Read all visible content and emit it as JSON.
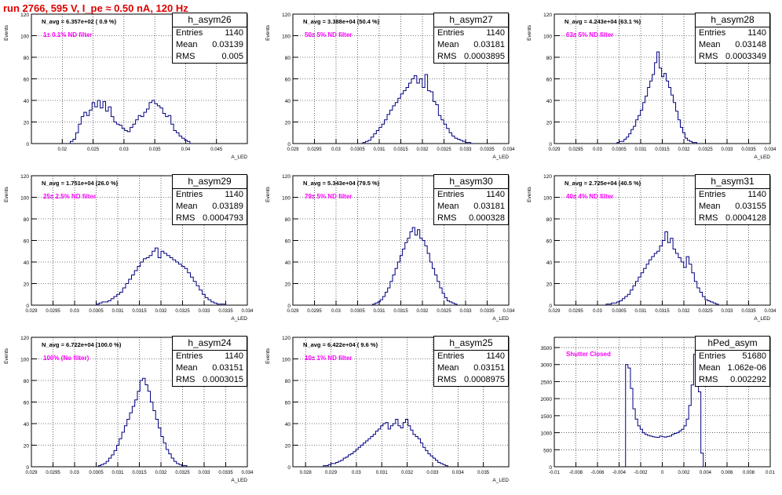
{
  "canvas": {
    "title": "run 2766,   595 V, I_pe ≈ 0.50 nA, 120 Hz",
    "title_color": "#dd0000"
  },
  "chart_data": [
    {
      "type": "bar",
      "name": "h_asym26",
      "ylabel": "Events",
      "xlabel": "A_LED",
      "xlim": [
        0.015,
        0.05
      ],
      "ylim": [
        0,
        120
      ],
      "xticks": [
        0.02,
        0.025,
        0.03,
        0.035,
        0.04,
        0.045
      ],
      "xtick_labels": [
        "0.02",
        "0.025",
        "0.03",
        "0.035",
        "0.04",
        "0.045"
      ],
      "yticks": [
        0,
        20,
        40,
        60,
        80,
        100,
        120
      ],
      "grid": true,
      "line_color": "#000080",
      "n_avg": "N_avg = 6.357e+02 ( 0.9 %)",
      "filter_label": "1± 0.1% ND filter",
      "filter_color": "#ff00ff",
      "stats": [
        [
          "Entries",
          "1140"
        ],
        [
          "Mean",
          "0.03139"
        ],
        [
          "RMS",
          "0.005"
        ]
      ],
      "bin_edges": [
        0.0213,
        0.0272,
        0.0294,
        0.0318,
        0.0336,
        0.036,
        0.0386,
        0.0407
      ],
      "bin_values": [
        2,
        4,
        10,
        18,
        25,
        29,
        26,
        31,
        38,
        34,
        40,
        33,
        39,
        30,
        34,
        25,
        20,
        18,
        17,
        14,
        12,
        11,
        15,
        18,
        22,
        26,
        25,
        29,
        32,
        38,
        40,
        37,
        35,
        33,
        28,
        25,
        26,
        18,
        12,
        10,
        7,
        5,
        3,
        2
      ]
    },
    {
      "type": "bar",
      "name": "h_asym27",
      "ylabel": "Events",
      "xlabel": "A_LED",
      "xlim": [
        0.029,
        0.034
      ],
      "ylim": [
        0,
        120
      ],
      "xticks": [
        0.029,
        0.0295,
        0.03,
        0.0305,
        0.031,
        0.0315,
        0.032,
        0.0325,
        0.033,
        0.0335,
        0.034
      ],
      "xtick_labels": [
        "0.029",
        "0.0295",
        "0.03",
        "0.0305",
        "0.031",
        "0.0315",
        "0.032",
        "0.0325",
        "0.033",
        "0.0335",
        "0.034"
      ],
      "yticks": [
        0,
        20,
        40,
        60,
        80,
        100,
        120
      ],
      "grid": true,
      "line_color": "#000080",
      "n_avg": "N_avg = 3.388e+04 (50.4 %)",
      "filter_label": "50± 5% ND filter",
      "filter_color": "#ff00ff",
      "stats": [
        [
          "Entries",
          "1140"
        ],
        [
          "Mean",
          "0.03181"
        ],
        [
          "RMS",
          "0.0003895"
        ]
      ],
      "bin_edges": [
        0.03062,
        0.03312
      ],
      "bin_values": [
        1,
        2,
        3,
        6,
        9,
        12,
        15,
        18,
        22,
        27,
        31,
        35,
        38,
        42,
        46,
        49,
        52,
        56,
        60,
        63,
        56,
        60,
        52,
        64,
        49,
        48,
        39,
        36,
        26,
        22,
        18,
        14,
        10,
        7,
        5,
        4,
        3,
        2,
        1,
        1
      ]
    },
    {
      "type": "bar",
      "name": "h_asym28",
      "ylabel": "Events",
      "xlabel": "A_LED",
      "xlim": [
        0.029,
        0.034
      ],
      "ylim": [
        0,
        120
      ],
      "xticks": [
        0.029,
        0.0295,
        0.03,
        0.0305,
        0.031,
        0.0315,
        0.032,
        0.0325,
        0.033,
        0.0335,
        0.034
      ],
      "xtick_labels": [
        "0.029",
        "0.0295",
        "0.03",
        "0.0305",
        "0.031",
        "0.0315",
        "0.032",
        "0.0325",
        "0.033",
        "0.0335",
        "0.034"
      ],
      "yticks": [
        0,
        20,
        40,
        60,
        80,
        100,
        120
      ],
      "grid": true,
      "line_color": "#000080",
      "n_avg": "N_avg = 4.243e+04 (63.1 %)",
      "filter_label": "63± 5% ND filter",
      "filter_color": "#ff00ff",
      "stats": [
        [
          "Entries",
          "1140"
        ],
        [
          "Mean",
          "0.03148"
        ],
        [
          "RMS",
          "0.0003349"
        ]
      ],
      "bin_edges": [
        0.03045,
        0.0323
      ],
      "bin_values": [
        1,
        2,
        2,
        4,
        6,
        9,
        13,
        16,
        22,
        26,
        31,
        38,
        44,
        52,
        58,
        64,
        75,
        85,
        70,
        62,
        65,
        58,
        52,
        45,
        38,
        30,
        22,
        15,
        10,
        5,
        3,
        2,
        1,
        1
      ]
    },
    {
      "type": "bar",
      "name": "h_asym29",
      "ylabel": "Events",
      "xlabel": "A_LED",
      "xlim": [
        0.029,
        0.034
      ],
      "ylim": [
        0,
        120
      ],
      "xticks": [
        0.029,
        0.0295,
        0.03,
        0.0305,
        0.031,
        0.0315,
        0.032,
        0.0325,
        0.033,
        0.0335,
        0.034
      ],
      "xtick_labels": [
        "0.029",
        "0.0295",
        "0.03",
        "0.0305",
        "0.031",
        "0.0315",
        "0.032",
        "0.0325",
        "0.033",
        "0.0335",
        "0.034"
      ],
      "yticks": [
        0,
        20,
        40,
        60,
        80,
        100,
        120
      ],
      "grid": true,
      "line_color": "#000080",
      "n_avg": "N_avg = 1.751e+04 (26.0 %)",
      "filter_label": "25± 2.5% ND filter",
      "filter_color": "#ff00ff",
      "stats": [
        [
          "Entries",
          "1140"
        ],
        [
          "Mean",
          "0.03189"
        ],
        [
          "RMS",
          "0.0004793"
        ]
      ],
      "bin_edges": [
        0.0305,
        0.0335
      ],
      "bin_values": [
        1,
        2,
        3,
        3,
        4,
        6,
        8,
        10,
        12,
        16,
        20,
        24,
        28,
        32,
        36,
        40,
        43,
        44,
        46,
        50,
        53,
        44,
        50,
        48,
        46,
        44,
        42,
        40,
        38,
        36,
        34,
        30,
        26,
        22,
        18,
        14,
        10,
        7,
        5,
        3,
        2,
        1,
        1,
        1
      ]
    },
    {
      "type": "bar",
      "name": "h_asym30",
      "ylabel": "Events",
      "xlabel": "A_LED",
      "xlim": [
        0.029,
        0.034
      ],
      "ylim": [
        0,
        120
      ],
      "xticks": [
        0.029,
        0.0295,
        0.03,
        0.0305,
        0.031,
        0.0315,
        0.032,
        0.0325,
        0.033,
        0.0335,
        0.034
      ],
      "xtick_labels": [
        "0.029",
        "0.0295",
        "0.03",
        "0.0305",
        "0.031",
        "0.0315",
        "0.032",
        "0.0325",
        "0.033",
        "0.0335",
        "0.034"
      ],
      "yticks": [
        0,
        20,
        40,
        60,
        80,
        100,
        120
      ],
      "grid": true,
      "line_color": "#000080",
      "n_avg": "N_avg = 5.343e+04 (79.5 %)",
      "filter_label": "79± 5% ND filter",
      "filter_color": "#ff00ff",
      "stats": [
        [
          "Entries",
          "1140"
        ],
        [
          "Mean",
          "0.03181"
        ],
        [
          "RMS",
          "0.000328"
        ]
      ],
      "bin_edges": [
        0.03085,
        0.0328
      ],
      "bin_values": [
        1,
        2,
        3,
        5,
        8,
        12,
        16,
        22,
        28,
        34,
        40,
        46,
        52,
        58,
        62,
        68,
        72,
        65,
        70,
        62,
        60,
        55,
        48,
        40,
        34,
        28,
        22,
        16,
        11,
        7,
        4,
        3,
        2,
        1
      ]
    },
    {
      "type": "bar",
      "name": "h_asym31",
      "ylabel": "Events",
      "xlabel": "A_LED",
      "xlim": [
        0.029,
        0.034
      ],
      "ylim": [
        0,
        120
      ],
      "xticks": [
        0.029,
        0.0295,
        0.03,
        0.0305,
        0.031,
        0.0315,
        0.032,
        0.0325,
        0.033,
        0.0335,
        0.034
      ],
      "xtick_labels": [
        "0.029",
        "0.0295",
        "0.03",
        "0.0305",
        "0.031",
        "0.0315",
        "0.032",
        "0.0325",
        "0.033",
        "0.0335",
        "0.034"
      ],
      "yticks": [
        0,
        20,
        40,
        60,
        80,
        100,
        120
      ],
      "grid": true,
      "line_color": "#000080",
      "n_avg": "N_avg = 2.725e+04 (40.5 %)",
      "filter_label": "40± 4% ND filter",
      "filter_color": "#ff00ff",
      "stats": [
        [
          "Entries",
          "1140"
        ],
        [
          "Mean",
          "0.03155"
        ],
        [
          "RMS",
          "0.0004128"
        ]
      ],
      "bin_edges": [
        0.0302,
        0.0328
      ],
      "bin_values": [
        1,
        1,
        2,
        2,
        3,
        4,
        6,
        8,
        10,
        14,
        18,
        22,
        26,
        30,
        34,
        38,
        42,
        45,
        48,
        50,
        55,
        60,
        68,
        58,
        62,
        52,
        48,
        44,
        40,
        35,
        45,
        38,
        30,
        22,
        16,
        12,
        8,
        5,
        4,
        3,
        2,
        1
      ]
    },
    {
      "type": "bar",
      "name": "h_asym24",
      "ylabel": "Events",
      "xlabel": "A_LED",
      "xlim": [
        0.029,
        0.034
      ],
      "ylim": [
        0,
        120
      ],
      "xticks": [
        0.029,
        0.0295,
        0.03,
        0.0305,
        0.031,
        0.0315,
        0.032,
        0.0325,
        0.033,
        0.0335,
        0.034
      ],
      "xtick_labels": [
        "0.029",
        "0.0295",
        "0.03",
        "0.0305",
        "0.031",
        "0.0315",
        "0.032",
        "0.0325",
        "0.033",
        "0.0335",
        "0.034"
      ],
      "yticks": [
        0,
        20,
        40,
        60,
        80,
        100,
        120
      ],
      "grid": true,
      "line_color": "#000080",
      "n_avg": "N_avg = 6.722e+04 (100.0 %)",
      "filter_label": "100% (No filter)",
      "filter_color": "#ff00ff",
      "stats": [
        [
          "Entries",
          "1140"
        ],
        [
          "Mean",
          "0.03151"
        ],
        [
          "RMS",
          "0.0003015"
        ]
      ],
      "bin_edges": [
        0.03055,
        0.0326
      ],
      "bin_values": [
        1,
        2,
        3,
        5,
        8,
        11,
        15,
        20,
        26,
        32,
        38,
        44,
        50,
        56,
        62,
        70,
        80,
        82,
        76,
        70,
        60,
        52,
        44,
        36,
        28,
        22,
        16,
        12,
        8,
        5,
        3,
        2,
        1,
        1
      ]
    },
    {
      "type": "bar",
      "name": "h_asym25",
      "ylabel": "Events",
      "xlabel": "A_LED",
      "xlim": [
        0.0275,
        0.036
      ],
      "ylim": [
        0,
        120
      ],
      "xticks": [
        0.028,
        0.029,
        0.03,
        0.031,
        0.032,
        0.033,
        0.034,
        0.035
      ],
      "xtick_labels": [
        "0.028",
        "0.029",
        "0.03",
        "0.031",
        "0.032",
        "0.033",
        "0.034",
        "0.035"
      ],
      "yticks": [
        0,
        20,
        40,
        60,
        80,
        100,
        120
      ],
      "grid": true,
      "line_color": "#000080",
      "n_avg": "N_avg = 6.422e+04 ( 9.6 %)",
      "filter_label": "10± 1% ND filter",
      "filter_color": "#ff00ff",
      "stats": [
        [
          "Entries",
          "1140"
        ],
        [
          "Mean",
          "0.03151"
        ],
        [
          "RMS",
          "0.0008975"
        ]
      ],
      "bin_edges": [
        0.0287,
        0.0336
      ],
      "bin_values": [
        1,
        1,
        2,
        3,
        3,
        4,
        5,
        6,
        8,
        9,
        11,
        12,
        14,
        16,
        18,
        20,
        22,
        24,
        26,
        28,
        30,
        33,
        35,
        38,
        40,
        41,
        35,
        38,
        40,
        44,
        38,
        36,
        41,
        44,
        38,
        34,
        30,
        28,
        26,
        22,
        18,
        15,
        12,
        10,
        8,
        6,
        4,
        3,
        2,
        1
      ]
    },
    {
      "type": "bar",
      "name": "hPed_asym",
      "ylabel": "",
      "xlabel": "",
      "xlim": [
        -0.01,
        0.01
      ],
      "ylim": [
        0,
        3800
      ],
      "xticks": [
        -0.01,
        -0.008,
        -0.006,
        -0.004,
        -0.002,
        0,
        0.002,
        0.004,
        0.006,
        0.008,
        0.01
      ],
      "xtick_labels": [
        "-0.01",
        "-0.008",
        "-0.006",
        "-0.004",
        "-0.002",
        "0",
        "0.002",
        "0.004",
        "0.006",
        "0.008",
        "0.01"
      ],
      "yticks": [
        0,
        500,
        1000,
        1500,
        2000,
        2500,
        3000,
        3500
      ],
      "grid": true,
      "line_color": "#000080",
      "n_avg": "",
      "filter_label": "Shutter Closed",
      "filter_color": "#ff00ff",
      "stats": [
        [
          "Entries",
          "51680"
        ],
        [
          "Mean",
          "1.062e-06"
        ],
        [
          "RMS",
          "0.002292"
        ]
      ],
      "bin_edges": [
        -0.0034,
        0.0038
      ],
      "bin_values": [
        3000,
        2900,
        2300,
        1700,
        1400,
        1200,
        1100,
        1000,
        950,
        920,
        900,
        880,
        870,
        860,
        900,
        880,
        870,
        890,
        900,
        950,
        980,
        1000,
        1050,
        1100,
        1200,
        1400,
        1800,
        2400,
        3300,
        3600,
        2200,
        400
      ]
    }
  ]
}
